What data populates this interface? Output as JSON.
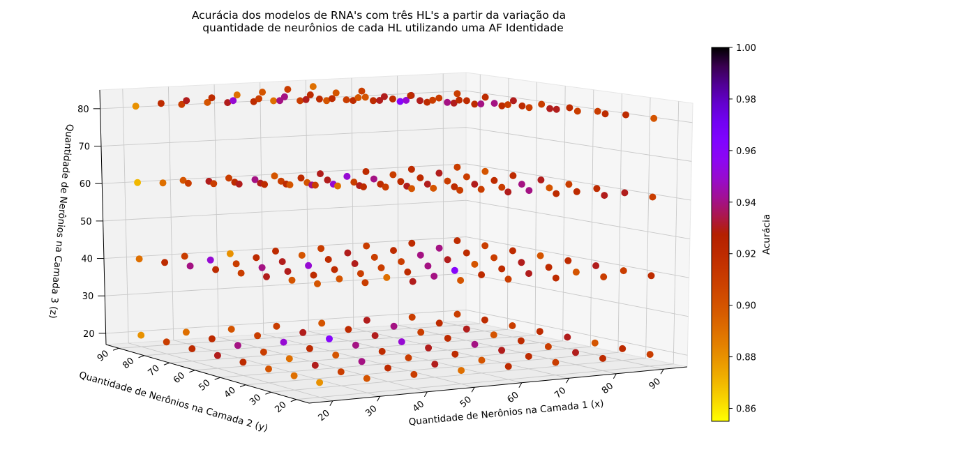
{
  "chart_data": {
    "type": "scatter",
    "projection": "3d",
    "title": [
      "Acurácia dos modelos de RNA's com três HL's a partir da variação da",
      "quantidade de neurônios de cada HL utilizando uma AF Identidade"
    ],
    "xlabel": "Quantidade de Nerônios na Camada 1 (x)",
    "ylabel": "Quantidade de Nerônios na Camada 2 (y)",
    "zlabel": "Quantidade de Nerônios na Camada 3 (z)",
    "x_ticks": [
      "20",
      "30",
      "40",
      "50",
      "60",
      "70",
      "80",
      "90"
    ],
    "y_ticks": [
      "20",
      "30",
      "40",
      "50",
      "60",
      "70",
      "80",
      "90"
    ],
    "z_ticks": [
      "20",
      "30",
      "40",
      "50",
      "60",
      "70",
      "80"
    ],
    "xlim": [
      15,
      95
    ],
    "ylim": [
      15,
      95
    ],
    "zlim": [
      17,
      85
    ],
    "grid": true,
    "colorbar": {
      "label": "Acurácia",
      "colormap": "gnuplot",
      "range": [
        0.855,
        1.0
      ],
      "ticks": [
        "0.86",
        "0.88",
        "0.90",
        "0.92",
        "0.94",
        "0.96",
        "0.98",
        "1.00"
      ]
    },
    "x_levels": [
      20,
      30,
      40,
      50,
      60,
      70,
      80,
      90
    ],
    "y_levels": [
      20,
      30,
      40,
      50,
      60,
      70,
      80,
      90
    ],
    "z_levels": [
      20,
      40,
      60,
      80
    ],
    "accuracy": [
      [
        [
          [
            0.88,
            0.9,
            0.91,
            0.89
          ],
          [
            0.89,
            0.9,
            0.9,
            0.91
          ],
          [
            0.9,
            0.93,
            0.92,
            0.9
          ],
          [
            0.92,
            0.91,
            0.93,
            0.89
          ],
          [
            0.93,
            0.92,
            0.91,
            0.92
          ],
          [
            0.92,
            0.94,
            0.91,
            0.93
          ],
          [
            0.91,
            0.92,
            0.89,
            0.92
          ],
          [
            0.88,
            0.89,
            0.87,
            0.88
          ]
        ],
        [
          [
            0.9,
            0.91,
            0.92,
            0.91
          ],
          [
            0.91,
            0.9,
            0.89,
            0.9
          ],
          [
            0.93,
            0.92,
            0.94,
            0.92
          ],
          [
            0.89,
            0.93,
            0.92,
            0.94
          ],
          [
            0.91,
            0.94,
            0.93,
            0.91
          ],
          [
            0.94,
            0.91,
            0.92,
            0.95
          ],
          [
            0.92,
            0.95,
            0.93,
            0.9
          ],
          [
            0.89,
            0.91,
            0.9,
            0.91
          ]
        ],
        [
          [
            0.91,
            0.93,
            0.9,
            0.92
          ],
          [
            0.92,
            0.89,
            0.91,
            0.93
          ],
          [
            0.94,
            0.91,
            0.93,
            0.9
          ],
          [
            0.9,
            0.92,
            0.95,
            0.92
          ],
          [
            0.92,
            0.95,
            0.9,
            0.93
          ],
          [
            0.95,
            0.93,
            0.91,
            0.94
          ],
          [
            0.91,
            0.92,
            0.94,
            0.92
          ],
          [
            0.9,
            0.88,
            0.91,
            0.93
          ]
        ],
        [
          [
            0.89,
            0.9,
            0.91,
            0.92
          ],
          [
            0.93,
            0.94,
            0.9,
            0.91
          ],
          [
            0.91,
            0.92,
            0.93,
            0.95
          ],
          [
            0.92,
            0.91,
            0.92,
            0.93
          ],
          [
            0.94,
            0.93,
            0.91,
            0.92
          ],
          [
            0.96,
            0.92,
            0.93,
            0.9
          ],
          [
            0.93,
            0.9,
            0.92,
            0.91
          ],
          [
            0.91,
            0.92,
            0.9,
            0.89
          ]
        ],
        [
          [
            0.92,
            0.91,
            0.93,
            0.91
          ],
          [
            0.9,
            0.92,
            0.91,
            0.94
          ],
          [
            0.92,
            0.96,
            0.92,
            0.93
          ],
          [
            0.93,
            0.94,
            0.93,
            0.92
          ],
          [
            0.95,
            0.91,
            0.92,
            0.96
          ],
          [
            0.93,
            0.91,
            0.94,
            0.92
          ],
          [
            0.92,
            0.93,
            0.95,
            0.91
          ],
          [
            0.9,
            0.91,
            0.93,
            0.92
          ]
        ],
        [
          [
            0.91,
            0.92,
            0.92,
            0.93
          ],
          [
            0.92,
            0.93,
            0.94,
            0.91
          ],
          [
            0.93,
            0.92,
            0.91,
            0.92
          ],
          [
            0.94,
            0.9,
            0.93,
            0.92
          ],
          [
            0.92,
            0.93,
            0.91,
            0.94
          ],
          [
            0.91,
            0.94,
            0.92,
            0.93
          ],
          [
            0.94,
            0.92,
            0.91,
            0.92
          ],
          [
            0.93,
            0.91,
            0.92,
            0.9
          ]
        ],
        [
          [
            0.92,
            0.91,
            0.93,
            0.92
          ],
          [
            0.93,
            0.9,
            0.92,
            0.91
          ],
          [
            0.91,
            0.92,
            0.9,
            0.93
          ],
          [
            0.92,
            0.93,
            0.94,
            0.92
          ],
          [
            0.9,
            0.91,
            0.92,
            0.94
          ],
          [
            0.93,
            0.92,
            0.91,
            0.92
          ],
          [
            0.92,
            0.94,
            0.93,
            0.91
          ],
          [
            0.91,
            0.92,
            0.92,
            0.93
          ]
        ],
        [
          [
            0.91,
            0.92,
            0.91,
            0.9
          ],
          [
            0.92,
            0.91,
            0.93,
            0.92
          ],
          [
            0.9,
            0.93,
            0.92,
            0.91
          ],
          [
            0.93,
            0.92,
            0.91,
            0.92
          ],
          [
            0.92,
            0.9,
            0.93,
            0.91
          ],
          [
            0.91,
            0.92,
            0.92,
            0.93
          ],
          [
            0.92,
            0.91,
            0.9,
            0.92
          ],
          [
            0.91,
            0.92,
            0.91,
            0.91
          ]
        ]
      ]
    ]
  }
}
